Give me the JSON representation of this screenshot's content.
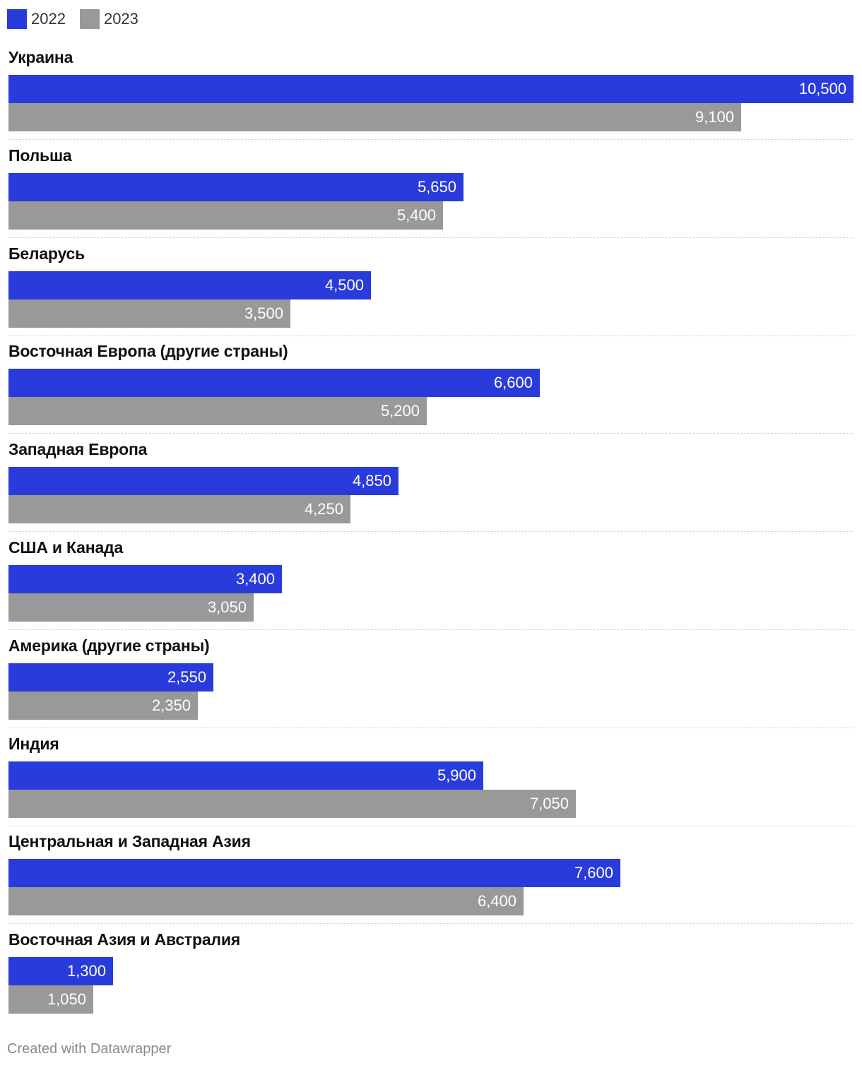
{
  "legend": [
    {
      "label": "2022",
      "color": "#2a3bdc"
    },
    {
      "label": "2023",
      "color": "#999999"
    }
  ],
  "footer": {
    "credit": "Created with Datawrapper"
  },
  "chart_data": {
    "type": "bar",
    "orientation": "horizontal",
    "grouped": true,
    "title": "",
    "xlabel": "",
    "ylabel": "",
    "xlim": [
      0,
      10500
    ],
    "grid": false,
    "legend_position": "top-left",
    "categories": [
      "Украина",
      "Польша",
      "Беларусь",
      "Восточная Европа (другие страны)",
      "Западная Европа",
      "США и Канада",
      "Америка (другие страны)",
      "Индия",
      "Центральная и Западная Азия",
      "Восточная Азия и Австралия"
    ],
    "series": [
      {
        "name": "2022",
        "color": "#2a3bdc",
        "values": [
          10500,
          5650,
          4500,
          6600,
          4850,
          3400,
          2550,
          5900,
          7600,
          1300
        ],
        "labels": [
          "10,500",
          "5,650",
          "4,500",
          "6,600",
          "4,850",
          "3,400",
          "2,550",
          "5,900",
          "7,600",
          "1,300"
        ]
      },
      {
        "name": "2023",
        "color": "#999999",
        "values": [
          9100,
          5400,
          3500,
          5200,
          4250,
          3050,
          2350,
          7050,
          6400,
          1050
        ],
        "labels": [
          "9,100",
          "5,400",
          "3,500",
          "5,200",
          "4,250",
          "3,050",
          "2,350",
          "7,050",
          "6,400",
          "1,050"
        ]
      }
    ]
  }
}
